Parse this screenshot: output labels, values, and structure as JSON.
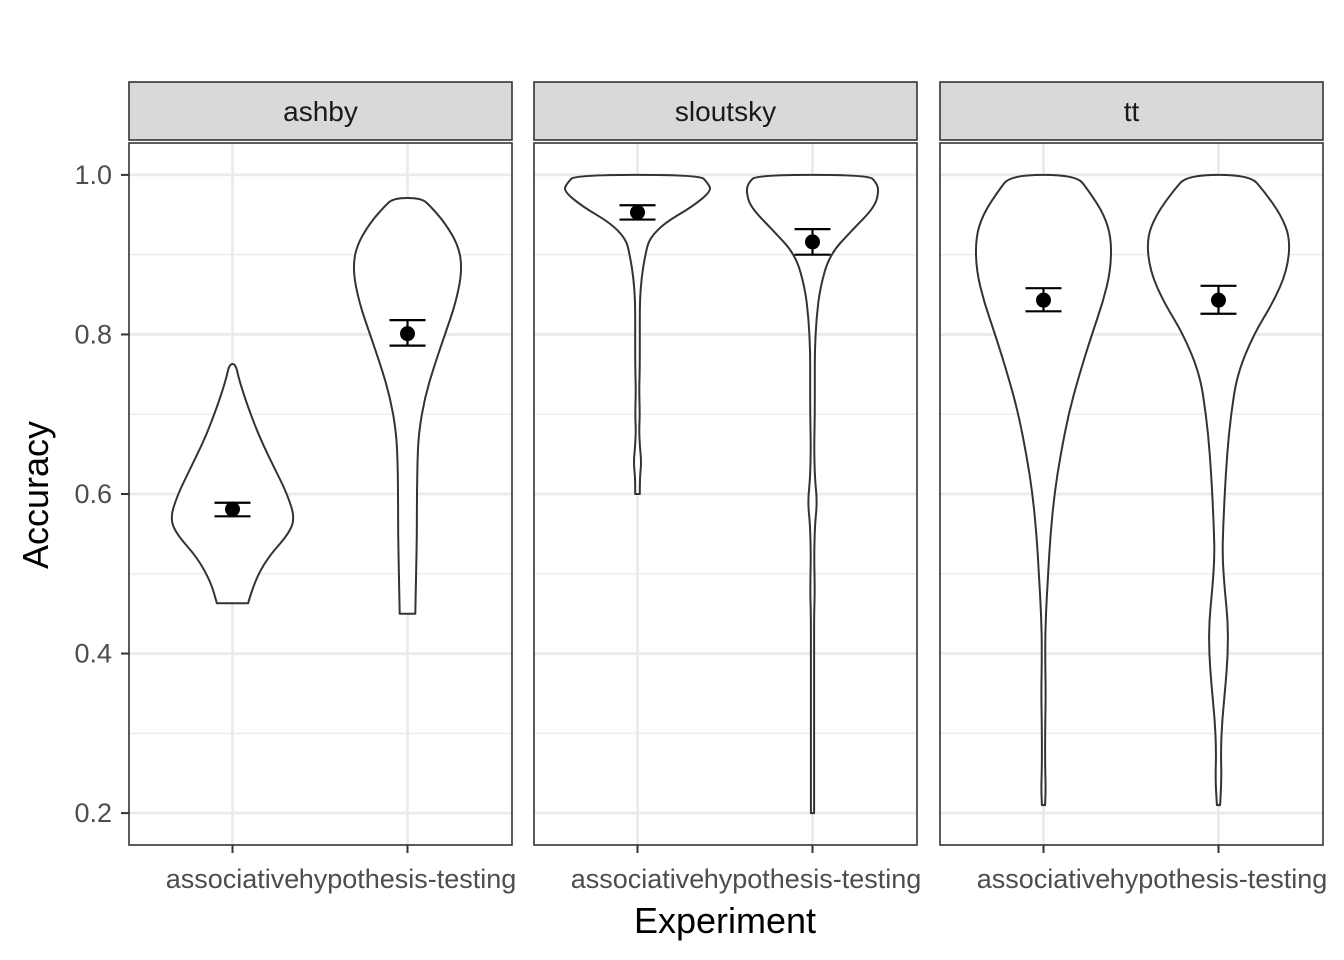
{
  "chart_data": {
    "type": "violin",
    "xlabel": "Experiment",
    "ylabel": "Accuracy",
    "ylim": [
      0.16,
      1.04
    ],
    "yticks": [
      0.2,
      0.4,
      0.6,
      0.8,
      1.0
    ],
    "ytick_labels": [
      "0.2",
      "0.4",
      "0.6",
      "0.8",
      "1.0"
    ],
    "categories": [
      "associative",
      "hypothesis-testing"
    ],
    "grid": true,
    "facets": [
      {
        "label": "ashby",
        "groups": [
          {
            "category": "associative",
            "mean": 0.581,
            "ci_low": 0.572,
            "ci_high": 0.589,
            "violin": [
              [
                0.463,
                0.2
              ],
              [
                0.49,
                0.28
              ],
              [
                0.52,
                0.45
              ],
              [
                0.55,
                0.72
              ],
              [
                0.57,
                0.8
              ],
              [
                0.6,
                0.7
              ],
              [
                0.63,
                0.55
              ],
              [
                0.66,
                0.4
              ],
              [
                0.69,
                0.27
              ],
              [
                0.72,
                0.16
              ],
              [
                0.745,
                0.08
              ],
              [
                0.763,
                0.04
              ]
            ]
          },
          {
            "category": "hypothesis-testing",
            "mean": 0.801,
            "ci_low": 0.786,
            "ci_high": 0.818,
            "violin": [
              [
                0.45,
                0.1
              ],
              [
                0.5,
                0.11
              ],
              [
                0.55,
                0.12
              ],
              [
                0.6,
                0.12
              ],
              [
                0.65,
                0.13
              ],
              [
                0.68,
                0.15
              ],
              [
                0.72,
                0.22
              ],
              [
                0.76,
                0.34
              ],
              [
                0.8,
                0.48
              ],
              [
                0.84,
                0.62
              ],
              [
                0.88,
                0.7
              ],
              [
                0.91,
                0.66
              ],
              [
                0.94,
                0.48
              ],
              [
                0.96,
                0.3
              ],
              [
                0.971,
                0.18
              ]
            ]
          }
        ]
      },
      {
        "label": "sloutsky",
        "groups": [
          {
            "category": "associative",
            "mean": 0.953,
            "ci_low": 0.944,
            "ci_high": 0.962,
            "violin": [
              [
                0.6,
                0.03
              ],
              [
                0.62,
                0.03
              ],
              [
                0.64,
                0.05
              ],
              [
                0.66,
                0.03
              ],
              [
                0.68,
                0.02
              ],
              [
                0.7,
                0.03
              ],
              [
                0.73,
                0.02
              ],
              [
                0.76,
                0.03
              ],
              [
                0.8,
                0.03
              ],
              [
                0.84,
                0.03
              ],
              [
                0.87,
                0.05
              ],
              [
                0.9,
                0.1
              ],
              [
                0.92,
                0.15
              ],
              [
                0.94,
                0.35
              ],
              [
                0.96,
                0.7
              ],
              [
                0.98,
                0.95
              ],
              [
                0.99,
                0.9
              ],
              [
                1.0,
                0.8
              ]
            ]
          },
          {
            "category": "hypothesis-testing",
            "mean": 0.916,
            "ci_low": 0.9,
            "ci_high": 0.932,
            "violin": [
              [
                0.2,
                0.02
              ],
              [
                0.25,
                0.02
              ],
              [
                0.3,
                0.02
              ],
              [
                0.35,
                0.02
              ],
              [
                0.4,
                0.02
              ],
              [
                0.45,
                0.02
              ],
              [
                0.48,
                0.03
              ],
              [
                0.52,
                0.02
              ],
              [
                0.56,
                0.03
              ],
              [
                0.59,
                0.06
              ],
              [
                0.62,
                0.03
              ],
              [
                0.66,
                0.02
              ],
              [
                0.7,
                0.03
              ],
              [
                0.74,
                0.03
              ],
              [
                0.78,
                0.03
              ],
              [
                0.82,
                0.05
              ],
              [
                0.86,
                0.1
              ],
              [
                0.9,
                0.22
              ],
              [
                0.93,
                0.5
              ],
              [
                0.96,
                0.8
              ],
              [
                0.98,
                0.85
              ],
              [
                0.99,
                0.82
              ],
              [
                1.0,
                0.72
              ]
            ]
          }
        ]
      },
      {
        "label": "tt",
        "groups": [
          {
            "category": "associative",
            "mean": 0.843,
            "ci_low": 0.829,
            "ci_high": 0.858,
            "violin": [
              [
                0.21,
                0.02
              ],
              [
                0.23,
                0.03
              ],
              [
                0.26,
                0.02
              ],
              [
                0.3,
                0.02
              ],
              [
                0.35,
                0.03
              ],
              [
                0.4,
                0.02
              ],
              [
                0.45,
                0.03
              ],
              [
                0.5,
                0.06
              ],
              [
                0.55,
                0.09
              ],
              [
                0.6,
                0.14
              ],
              [
                0.65,
                0.22
              ],
              [
                0.7,
                0.32
              ],
              [
                0.75,
                0.46
              ],
              [
                0.8,
                0.62
              ],
              [
                0.84,
                0.76
              ],
              [
                0.88,
                0.86
              ],
              [
                0.92,
                0.87
              ],
              [
                0.95,
                0.78
              ],
              [
                0.98,
                0.58
              ],
              [
                1.0,
                0.42
              ]
            ]
          },
          {
            "category": "hypothesis-testing",
            "mean": 0.843,
            "ci_low": 0.826,
            "ci_high": 0.861,
            "violin": [
              [
                0.21,
                0.02
              ],
              [
                0.24,
                0.04
              ],
              [
                0.28,
                0.03
              ],
              [
                0.32,
                0.05
              ],
              [
                0.36,
                0.09
              ],
              [
                0.4,
                0.12
              ],
              [
                0.44,
                0.12
              ],
              [
                0.48,
                0.08
              ],
              [
                0.52,
                0.05
              ],
              [
                0.56,
                0.06
              ],
              [
                0.6,
                0.08
              ],
              [
                0.65,
                0.11
              ],
              [
                0.7,
                0.16
              ],
              [
                0.75,
                0.24
              ],
              [
                0.8,
                0.45
              ],
              [
                0.84,
                0.7
              ],
              [
                0.88,
                0.88
              ],
              [
                0.92,
                0.92
              ],
              [
                0.95,
                0.8
              ],
              [
                0.98,
                0.58
              ],
              [
                1.0,
                0.4
              ]
            ]
          }
        ]
      }
    ]
  }
}
